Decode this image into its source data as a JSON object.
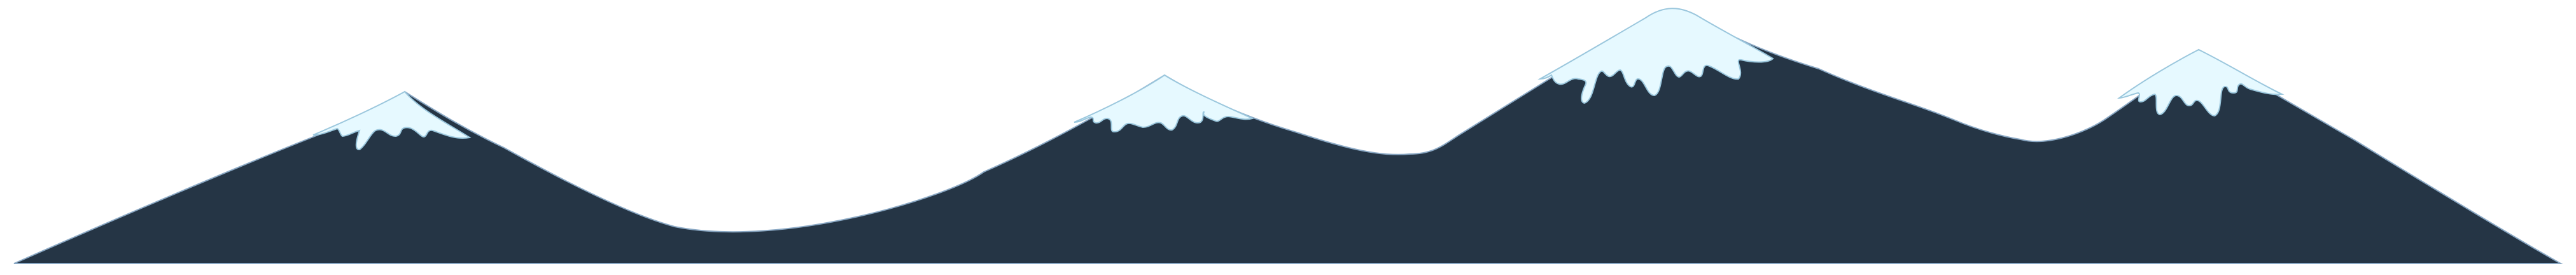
{
  "illustration": {
    "kind": "mountain-range-with-snow-caps",
    "peaks": 4,
    "colors": {
      "background": "#ffffff",
      "mountain_fill": "#253545",
      "mountain_outline": "#8aa8c4",
      "snow_fill": "#e6f9ff",
      "snow_outline": "#9bc7dd"
    }
  }
}
